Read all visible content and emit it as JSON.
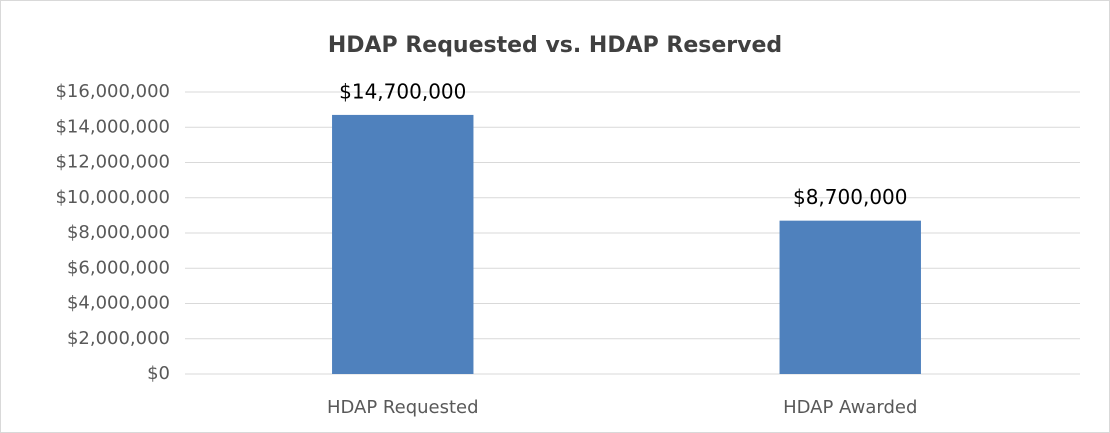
{
  "chart_data": {
    "type": "bar",
    "title": "HDAP Requested vs. HDAP Reserved",
    "categories": [
      "HDAP Requested",
      "HDAP Awarded"
    ],
    "values": [
      14700000,
      8700000
    ],
    "value_labels": [
      "$14,700,000",
      "$8,700,000"
    ],
    "color": "#4f81bd",
    "ylim": [
      0,
      16000000
    ],
    "yticks": [
      {
        "value": 0,
        "label": "$0"
      },
      {
        "value": 2000000,
        "label": "$2,000,000"
      },
      {
        "value": 4000000,
        "label": "$4,000,000"
      },
      {
        "value": 6000000,
        "label": "$6,000,000"
      },
      {
        "value": 8000000,
        "label": "$8,000,000"
      },
      {
        "value": 10000000,
        "label": "$10,000,000"
      },
      {
        "value": 12000000,
        "label": "$12,000,000"
      },
      {
        "value": 14000000,
        "label": "$14,000,000"
      },
      {
        "value": 16000000,
        "label": "$16,000,000"
      }
    ],
    "grid": true
  }
}
